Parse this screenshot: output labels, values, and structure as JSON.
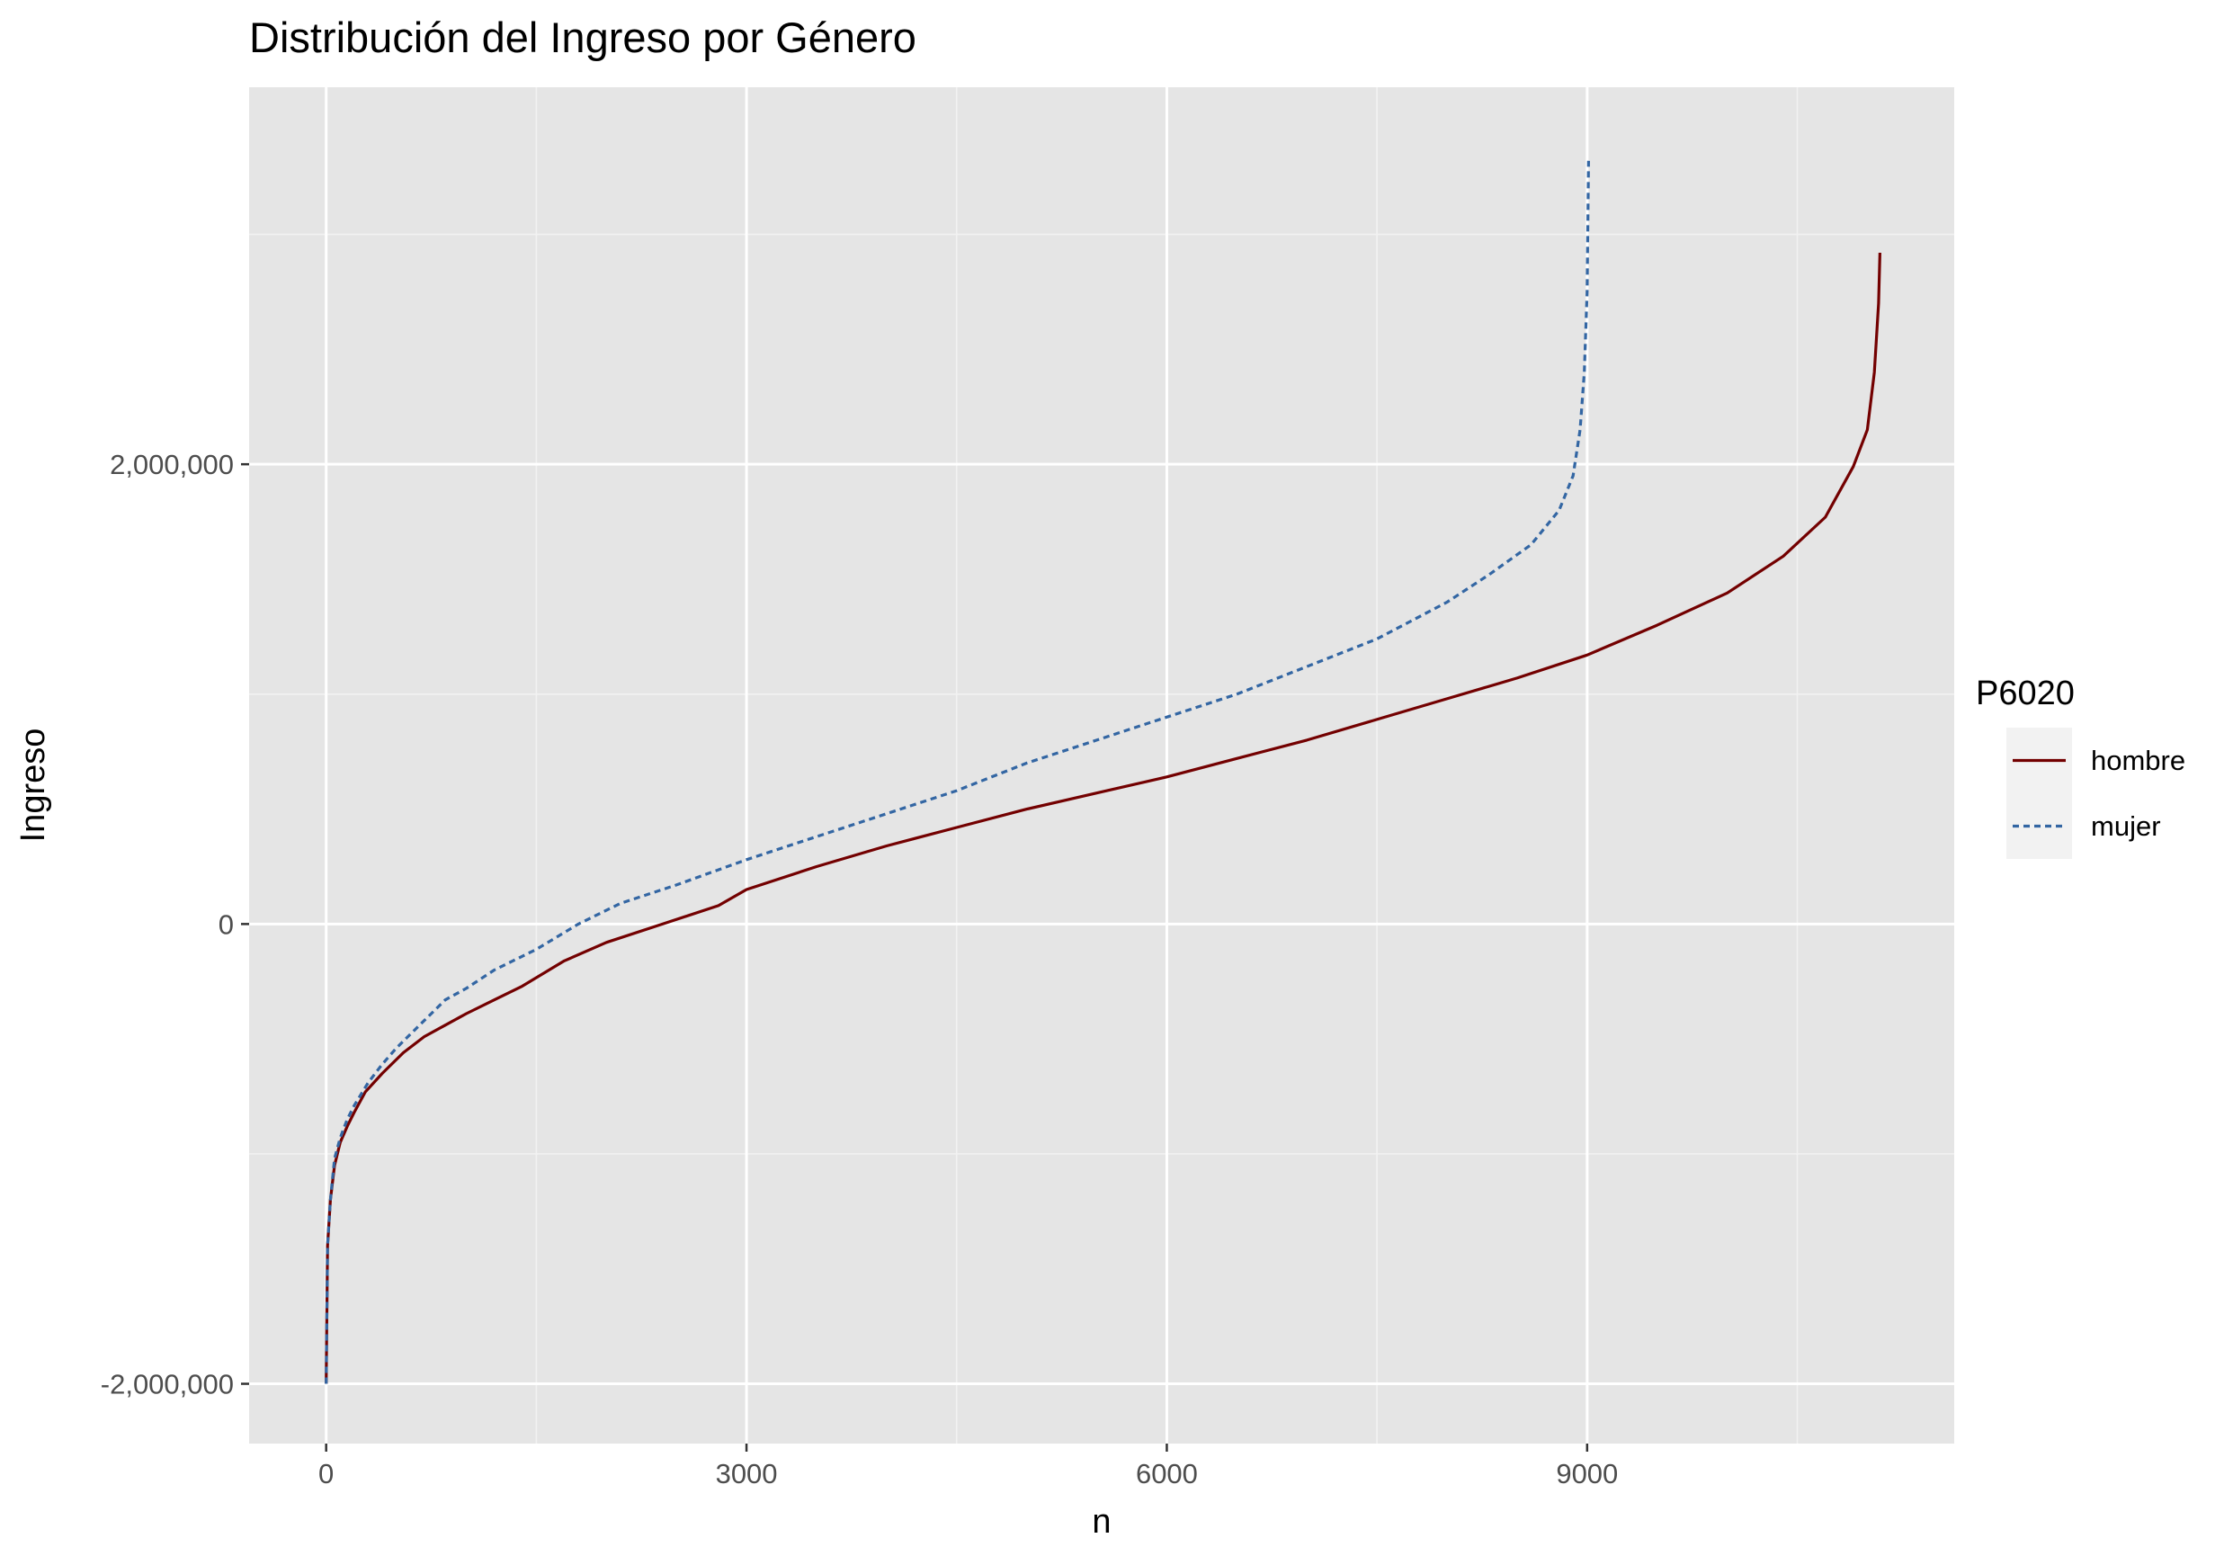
{
  "chart_data": {
    "type": "line",
    "title": "Distribución del Ingreso por Género",
    "xlabel": "n",
    "ylabel": "Ingreso",
    "xlim": [
      -550,
      11620
    ],
    "ylim": [
      -2260000,
      3640000
    ],
    "x_ticks": [
      0,
      3000,
      6000,
      9000
    ],
    "x_tick_labels": [
      "0",
      "3000",
      "6000",
      "9000"
    ],
    "y_ticks": [
      -2000000,
      0,
      2000000
    ],
    "y_tick_labels": [
      "-2,000,000",
      "0",
      "2,000,000"
    ],
    "grid": true,
    "legend": {
      "title": "P6020",
      "placement": "right",
      "entries": [
        "hombre",
        "mujer"
      ]
    },
    "series": [
      {
        "name": "hombre",
        "color": "#730000",
        "line_style": "solid",
        "x": [
          0,
          10,
          30,
          60,
          100,
          150,
          200,
          280,
          400,
          550,
          700,
          850,
          1000,
          1200,
          1400,
          1700,
          2000,
          2400,
          2800,
          3000,
          3500,
          4000,
          4500,
          5000,
          5500,
          6000,
          6500,
          7000,
          7500,
          8000,
          8500,
          9000,
          9500,
          10000,
          10400,
          10700,
          10900,
          11000,
          11050,
          11080,
          11090
        ],
        "values": [
          -2000000,
          -1400000,
          -1200000,
          -1050000,
          -950000,
          -880000,
          -820000,
          -730000,
          -650000,
          -560000,
          -490000,
          -440000,
          -390000,
          -330000,
          -270000,
          -160000,
          -80000,
          0,
          80000,
          150000,
          250000,
          340000,
          420000,
          500000,
          570000,
          640000,
          720000,
          800000,
          890000,
          980000,
          1070000,
          1170000,
          1300000,
          1440000,
          1600000,
          1770000,
          1990000,
          2150000,
          2400000,
          2700000,
          2920000
        ]
      },
      {
        "name": "mujer",
        "color": "#3366a3",
        "line_style": "dashed",
        "x": [
          0,
          10,
          30,
          60,
          100,
          150,
          200,
          300,
          400,
          500,
          600,
          700,
          850,
          1000,
          1200,
          1500,
          1800,
          2100,
          2500,
          3000,
          3500,
          4000,
          4500,
          5000,
          5500,
          6000,
          6500,
          7000,
          7500,
          8000,
          8300,
          8600,
          8800,
          8900,
          8950,
          8980,
          9000,
          9010
        ],
        "values": [
          -2000000,
          -1400000,
          -1200000,
          -1020000,
          -930000,
          -850000,
          -790000,
          -690000,
          -610000,
          -540000,
          -480000,
          -420000,
          -330000,
          -280000,
          -200000,
          -110000,
          0,
          90000,
          170000,
          280000,
          380000,
          480000,
          580000,
          700000,
          800000,
          900000,
          1000000,
          1120000,
          1240000,
          1400000,
          1520000,
          1650000,
          1800000,
          1950000,
          2150000,
          2400000,
          2750000,
          3320000
        ]
      }
    ]
  }
}
